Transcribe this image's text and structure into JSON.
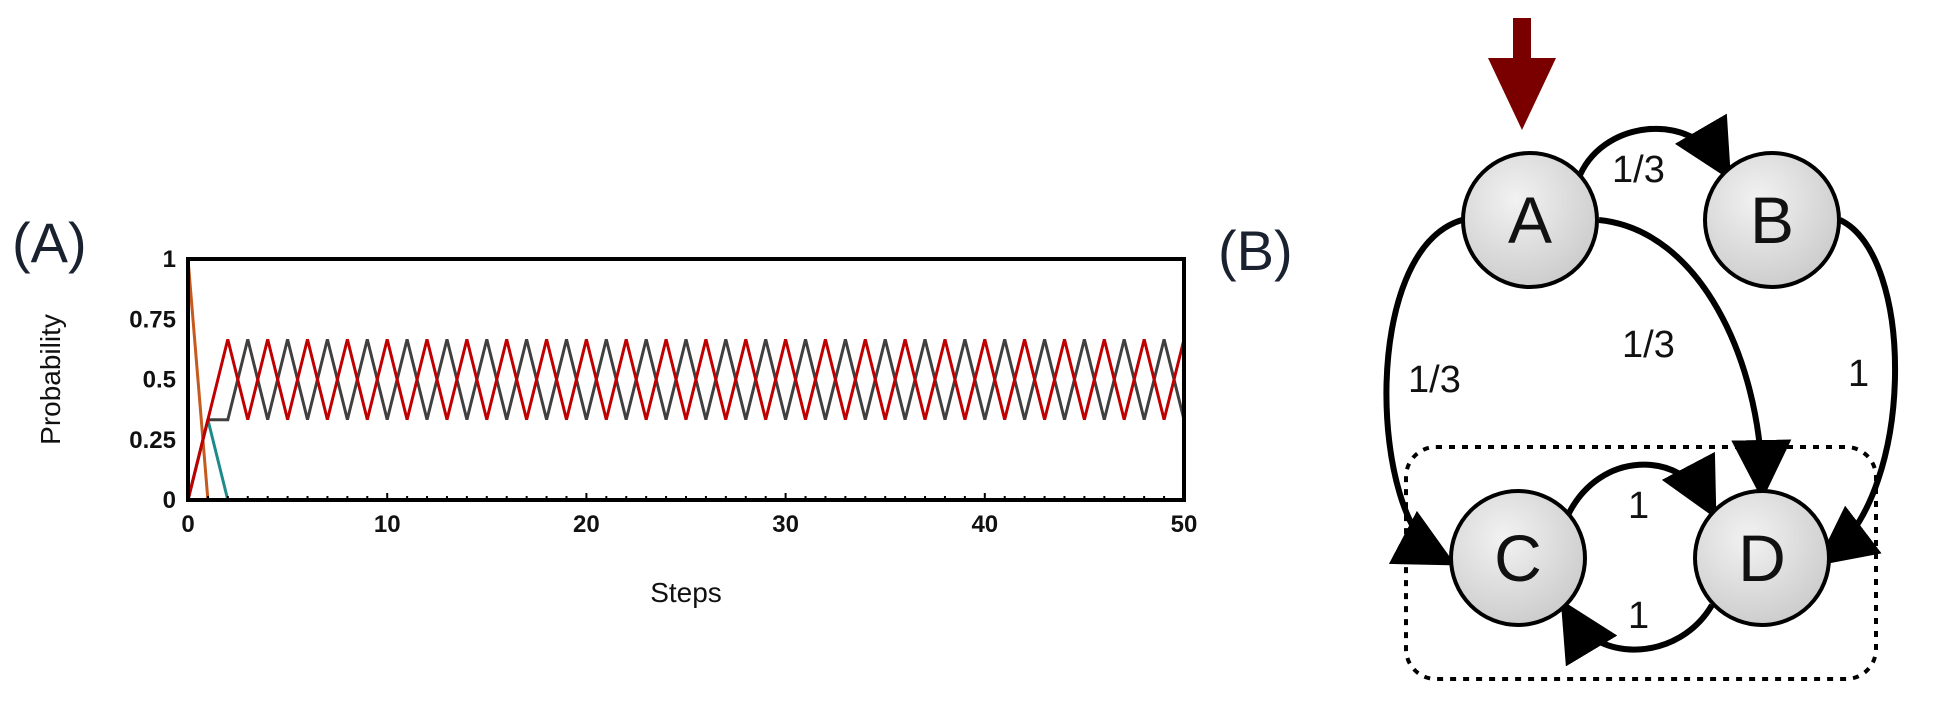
{
  "panel_a_label": "(A)",
  "panel_b_label": "(B)",
  "chart_data": {
    "type": "line",
    "title": "",
    "xlabel": "Steps",
    "ylabel": "Probability",
    "xlim": [
      0,
      50
    ],
    "ylim": [
      0,
      1
    ],
    "x_ticks": [
      0,
      10,
      20,
      30,
      40,
      50
    ],
    "y_ticks": [
      0,
      0.25,
      0.5,
      0.75,
      1
    ],
    "y_tick_labels": [
      "0",
      "0.25",
      "0.5",
      "0.75",
      "1"
    ],
    "grid": false,
    "series": [
      {
        "color": "#c65a1e",
        "x": [
          0,
          1,
          50
        ],
        "y": [
          1,
          0,
          0
        ]
      },
      {
        "color": "#1f8a8a",
        "x": [
          0,
          1,
          2,
          50
        ],
        "y": [
          0,
          0.333,
          0,
          0
        ]
      },
      {
        "color": "#404040",
        "x": [
          0,
          1,
          2
        ],
        "y": [
          0,
          0.333,
          0.333
        ],
        "pattern": {
          "start_step": 2,
          "end_step": 50,
          "even_value": 0.333,
          "odd_value": 0.667
        }
      },
      {
        "color": "#c00000",
        "x": [
          0,
          1,
          2
        ],
        "y": [
          0,
          0.333,
          0.667
        ],
        "pattern": {
          "start_step": 2,
          "end_step": 50,
          "even_value": 0.667,
          "odd_value": 0.333
        }
      }
    ]
  },
  "diagram": {
    "start_arrow_color": "#7a0000",
    "nodes": [
      {
        "id": "A",
        "label": "A"
      },
      {
        "id": "B",
        "label": "B"
      },
      {
        "id": "C",
        "label": "C"
      },
      {
        "id": "D",
        "label": "D"
      }
    ],
    "edges": [
      {
        "from": "A",
        "to": "B",
        "label": "1/3"
      },
      {
        "from": "A",
        "to": "C",
        "label": "1/3"
      },
      {
        "from": "A",
        "to": "D",
        "label": "1/3"
      },
      {
        "from": "B",
        "to": "D",
        "label": "1"
      },
      {
        "from": "C",
        "to": "D",
        "label": "1"
      },
      {
        "from": "D",
        "to": "C",
        "label": "1"
      }
    ]
  }
}
